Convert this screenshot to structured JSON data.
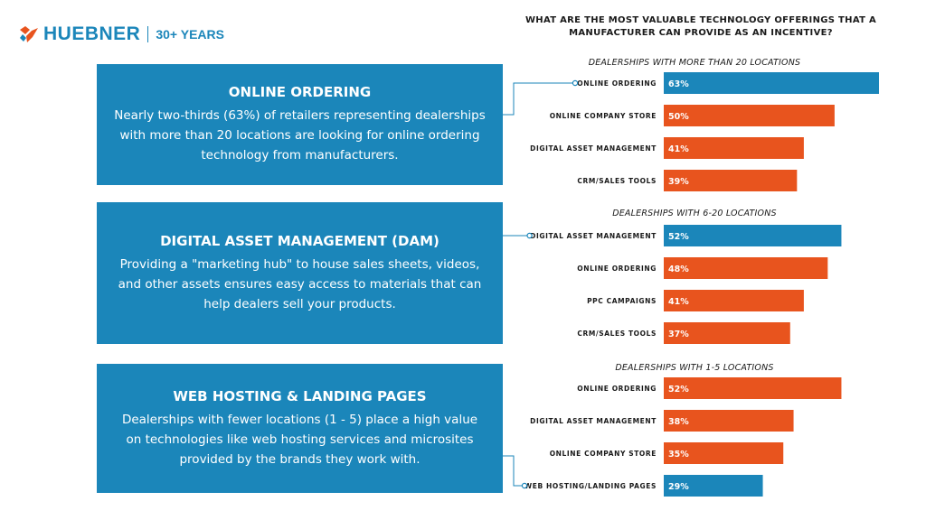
{
  "logo": {
    "name": "HUEBNER",
    "years": "30+ YEARS"
  },
  "info_boxes": [
    {
      "title": "ONLINE ORDERING",
      "body": "Nearly two-thirds (63%) of retailers representing dealerships with more than 20 locations are looking for online ordering technology from manufacturers."
    },
    {
      "title": "DIGITAL ASSET MANAGEMENT (DAM)",
      "body": "Providing a \"marketing hub\" to house sales sheets, videos, and other assets ensures easy access to materials that can help dealers sell your products."
    },
    {
      "title": "WEB HOSTING & LANDING PAGES",
      "body": "Dealerships with fewer locations (1 - 5) place a high value on technologies like web hosting services and microsites provided by the brands they work with."
    }
  ],
  "colors": {
    "blue": "#1b86ba",
    "orange": "#e8541e",
    "connector": "#1b86ba"
  },
  "chart_data": {
    "type": "bar",
    "orientation": "horizontal",
    "title": "WHAT ARE THE MOST VALUABLE TECHNOLOGY OFFERINGS THAT A MANUFACTURER CAN PROVIDE AS AN INCENTIVE?",
    "xlim": [
      0,
      63
    ],
    "grid": false,
    "groups": [
      {
        "name": "DEALERSHIPS WITH MORE THAN 20 LOCATIONS",
        "categories": [
          "ONLINE ORDERING",
          "ONLINE COMPANY STORE",
          "DIGITAL ASSET MANAGEMENT",
          "CRM/SALES TOOLS"
        ],
        "values": [
          63,
          50,
          41,
          39
        ],
        "labels": [
          "63%",
          "50%",
          "41%",
          "39%"
        ],
        "highlight": [
          true,
          false,
          false,
          false
        ]
      },
      {
        "name": "DEALERSHIPS WITH 6-20 LOCATIONS",
        "categories": [
          "DIGITAL ASSET MANAGEMENT",
          "ONLINE ORDERING",
          "PPC CAMPAIGNS",
          "CRM/SALES TOOLS"
        ],
        "values": [
          52,
          48,
          41,
          37
        ],
        "labels": [
          "52%",
          "48%",
          "41%",
          "37%"
        ],
        "highlight": [
          true,
          false,
          false,
          false
        ]
      },
      {
        "name": "DEALERSHIPS WITH 1-5 LOCATIONS",
        "categories": [
          "ONLINE ORDERING",
          "DIGITAL ASSET MANAGEMENT",
          "ONLINE COMPANY STORE",
          "WEB HOSTING/LANDING PAGES"
        ],
        "values": [
          52,
          38,
          35,
          29
        ],
        "labels": [
          "52%",
          "38%",
          "35%",
          "29%"
        ],
        "highlight": [
          false,
          false,
          false,
          true
        ]
      }
    ]
  }
}
